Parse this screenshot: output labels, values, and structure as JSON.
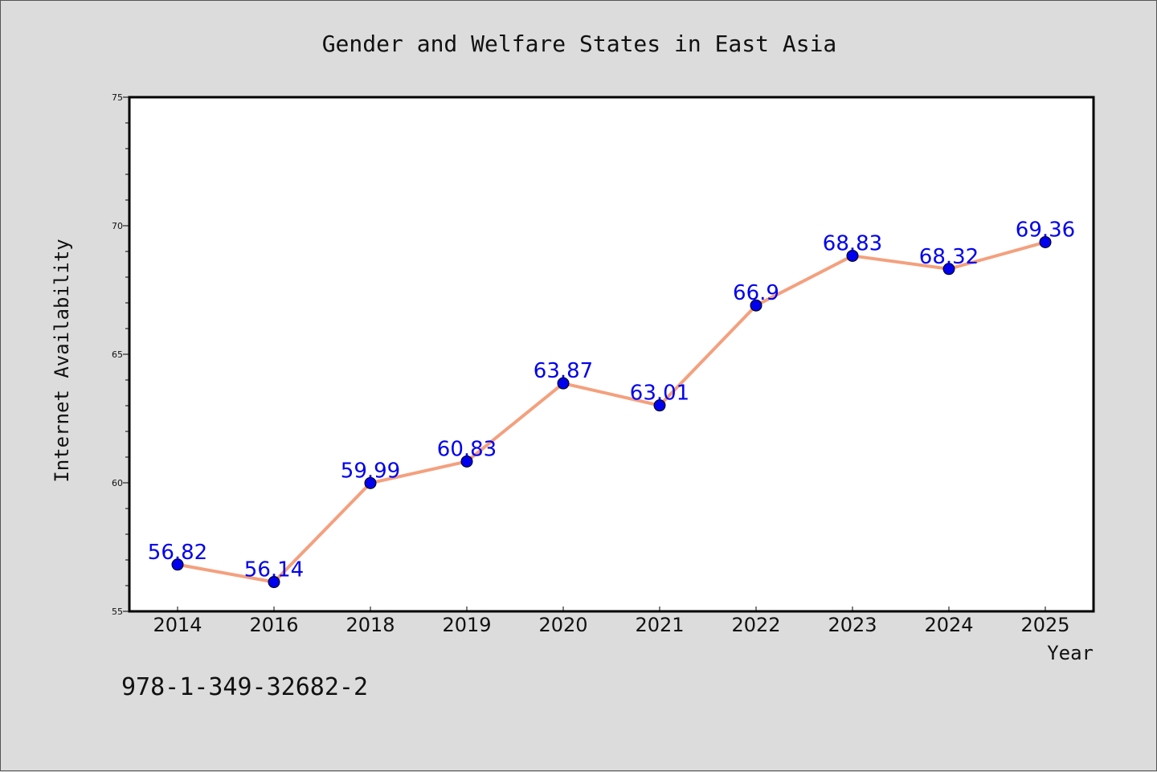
{
  "chart_data": {
    "type": "line",
    "title": "Gender and Welfare States in East Asia",
    "xlabel": "Year",
    "ylabel": "Internet Availability",
    "categories": [
      "2014",
      "2016",
      "2018",
      "2019",
      "2020",
      "2021",
      "2022",
      "2023",
      "2024",
      "2025"
    ],
    "series": [
      {
        "values": [
          56.82,
          56.14,
          59.99,
          60.83,
          63.87,
          63.01,
          66.9,
          68.83,
          68.32,
          69.36
        ],
        "labels": [
          "56.82",
          "56.14",
          "59.99",
          "60.83",
          "63.87",
          "63.01",
          "66.9",
          "68.83",
          "68.32",
          "69.36"
        ],
        "line_color": "#f4a07e",
        "marker_color": "#0000ee",
        "label_color": "#0000ee"
      }
    ],
    "ylim": [
      55,
      75
    ],
    "yticks": [
      "55",
      "60",
      "65",
      "70",
      "75"
    ],
    "grid": false
  },
  "footer_text": "978-1-349-32682-2"
}
